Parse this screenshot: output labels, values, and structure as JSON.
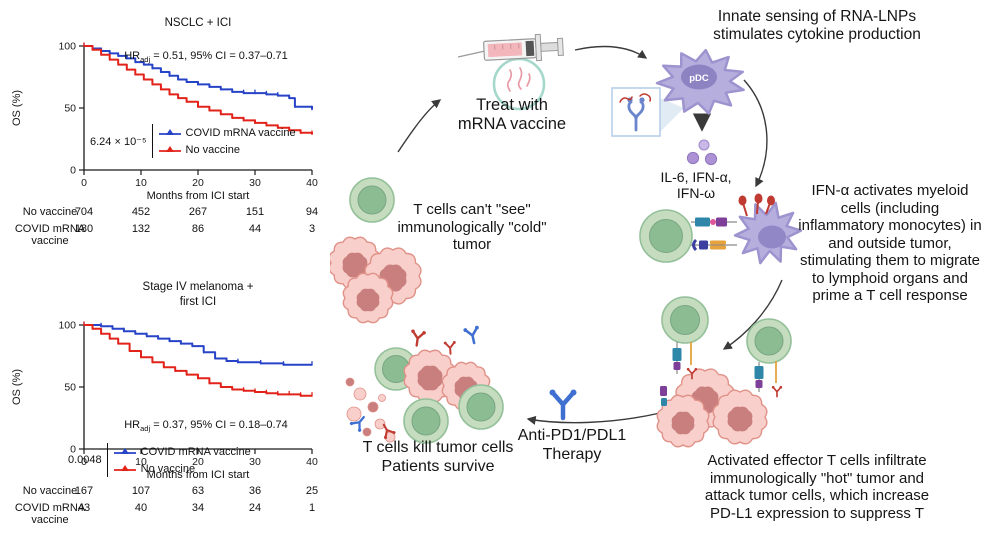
{
  "colors": {
    "curve_blue": "#2743c7",
    "curve_red": "#e2231a",
    "axis": "#1a1a1a",
    "tcell_outer": "#c5ddbe",
    "tcell_stroke": "#94c09a",
    "tcell_inner": "#8cbc92",
    "tcell_inner_stroke": "#79a683",
    "tumor_fill": "#f8cfca",
    "tumor_stroke": "#e09188",
    "tumor_inner": "#c97f7e",
    "pdc_fill": "#b6afde",
    "pdc_stroke": "#9c93cf",
    "pdc_nucleus": "#8d83c3",
    "ab_blue": "#3f6fd1",
    "ab_red": "#bf3a31",
    "rec_teal": "#2e86a8",
    "rec_purple": "#7d3f98",
    "rec_navy": "#3b3f9f",
    "rec_orange": "#e6a23c",
    "rec_pink": "#e0559a",
    "arrow": "#3a3a3a",
    "lnp_ring": "#a5d8cb",
    "mrna_pink": "#e99aa6",
    "syringe_liquid": "#f2b6bb",
    "cyto_light": "#c9b8e8",
    "cyto_dark": "#ac92d5",
    "inset_border": "#b8cfe6",
    "inset_receptor": "#6b85cc"
  },
  "chart_data": [
    {
      "type": "line",
      "title": "NSCLC + ICI",
      "ylabel": "OS (%)",
      "xlabel": "Months from ICI start",
      "xlim": [
        0,
        40
      ],
      "ylim": [
        0,
        100
      ],
      "xticks": [
        0,
        10,
        20,
        30,
        40
      ],
      "yticks": [
        0,
        50,
        100
      ],
      "hr": {
        "prefix": "HR",
        "sub": "adj",
        "suffix": " = 0.51, 95% CI = 0.37–0.71"
      },
      "p_value": "6.24 × 10⁻⁵",
      "legend_position": "inside-bottom-left",
      "grid": false,
      "series": [
        {
          "name": "COVID mRNA vaccine",
          "color": "#2743c7",
          "x": [
            0,
            1.5,
            3,
            4.5,
            6,
            7.5,
            9,
            10.5,
            12,
            13.5,
            15,
            16.5,
            18,
            20,
            22,
            24,
            26,
            28,
            30,
            32,
            34,
            36,
            37,
            40
          ],
          "y": [
            100,
            98,
            96,
            94,
            92,
            90,
            87,
            85,
            82,
            79,
            76,
            73,
            71,
            69,
            67,
            65,
            63,
            62,
            62,
            61,
            60,
            58,
            51,
            49
          ]
        },
        {
          "name": "No vaccine",
          "color": "#e2231a",
          "x": [
            0,
            1.5,
            3,
            4.5,
            6,
            7.5,
            9,
            10.5,
            12,
            13.5,
            15,
            16.5,
            18,
            20,
            22,
            24,
            26,
            28,
            30,
            32,
            34,
            36,
            38,
            40
          ],
          "y": [
            100,
            97,
            93,
            89,
            85,
            81,
            77,
            73,
            69,
            65,
            61,
            58,
            55,
            51,
            48,
            45,
            42,
            40,
            38,
            36,
            34,
            32,
            30,
            29
          ]
        }
      ],
      "risk_table": {
        "rows": [
          {
            "label": "No vaccine",
            "values": [
              "704",
              "452",
              "267",
              "151",
              "94"
            ]
          },
          {
            "label": "COVID mRNA vaccine",
            "values": [
              "180",
              "132",
              "86",
              "44",
              "3"
            ]
          }
        ]
      }
    },
    {
      "type": "line",
      "title": "Stage IV melanoma +\nfirst ICI",
      "ylabel": "OS (%)",
      "xlabel": "Months from ICI start",
      "xlim": [
        0,
        40
      ],
      "ylim": [
        0,
        100
      ],
      "xticks": [
        0,
        10,
        20,
        30,
        40
      ],
      "yticks": [
        0,
        50,
        100
      ],
      "hr": {
        "prefix": "HR",
        "sub": "adj",
        "suffix": " = 0.37, 95% CI = 0.18–0.74"
      },
      "p_value": "0.0048",
      "legend_position": "inside-bottom-left",
      "grid": false,
      "series": [
        {
          "name": "COVID mRNA vaccine",
          "color": "#2743c7",
          "x": [
            0,
            3,
            5,
            7,
            9,
            11,
            13,
            15,
            17,
            19,
            21,
            23,
            25,
            27,
            31,
            35,
            40
          ],
          "y": [
            100,
            99,
            97,
            95,
            93,
            91,
            89,
            87,
            85,
            83,
            78,
            73,
            71,
            70,
            69,
            68,
            68
          ]
        },
        {
          "name": "No vaccine",
          "color": "#e2231a",
          "x": [
            0,
            1.5,
            3,
            4.5,
            6,
            8,
            10,
            12,
            14,
            16,
            18,
            20,
            22,
            24,
            26,
            28,
            30,
            32,
            34,
            36,
            38,
            40
          ],
          "y": [
            100,
            97,
            93,
            89,
            85,
            79,
            74,
            70,
            66,
            63,
            60,
            57,
            53,
            50,
            48,
            47,
            46,
            45,
            44,
            44,
            43,
            43
          ]
        }
      ],
      "risk_table": {
        "rows": [
          {
            "label": "No vaccine",
            "values": [
              "167",
              "107",
              "63",
              "36",
              "25"
            ]
          },
          {
            "label": "COVID mRNA vaccine",
            "values": [
              "43",
              "40",
              "34",
              "24",
              "1"
            ]
          }
        ]
      }
    }
  ],
  "diagram": {
    "treat_label": "Treat with\nmRNA vaccine",
    "innate_label": "Innate sensing of RNA-LNPs\nstimulates cytokine production",
    "pdc_label": "pDC",
    "cytokines_label": "IL-6, IFN-α,\nIFN-ω",
    "ifna_label": "IFN-α activates myeloid\ncells (including\ninflammatory monocytes) in\nand outside tumor,\nstimulating them to migrate\nto lymphoid organs and\nprime a T cell response",
    "cold_label": "T cells can't \"see\"\nimmunologically \"cold\"\ntumor",
    "activated_label": "Activated effector T cells infiltrate\nimmunologically \"hot\" tumor and\nattack tumor cells, which increase\nPD-L1 expression to suppress T",
    "antipd_label": "Anti-PD1/PDL1\nTherapy",
    "kill_label": "T cells kill tumor cells\nPatients survive"
  }
}
